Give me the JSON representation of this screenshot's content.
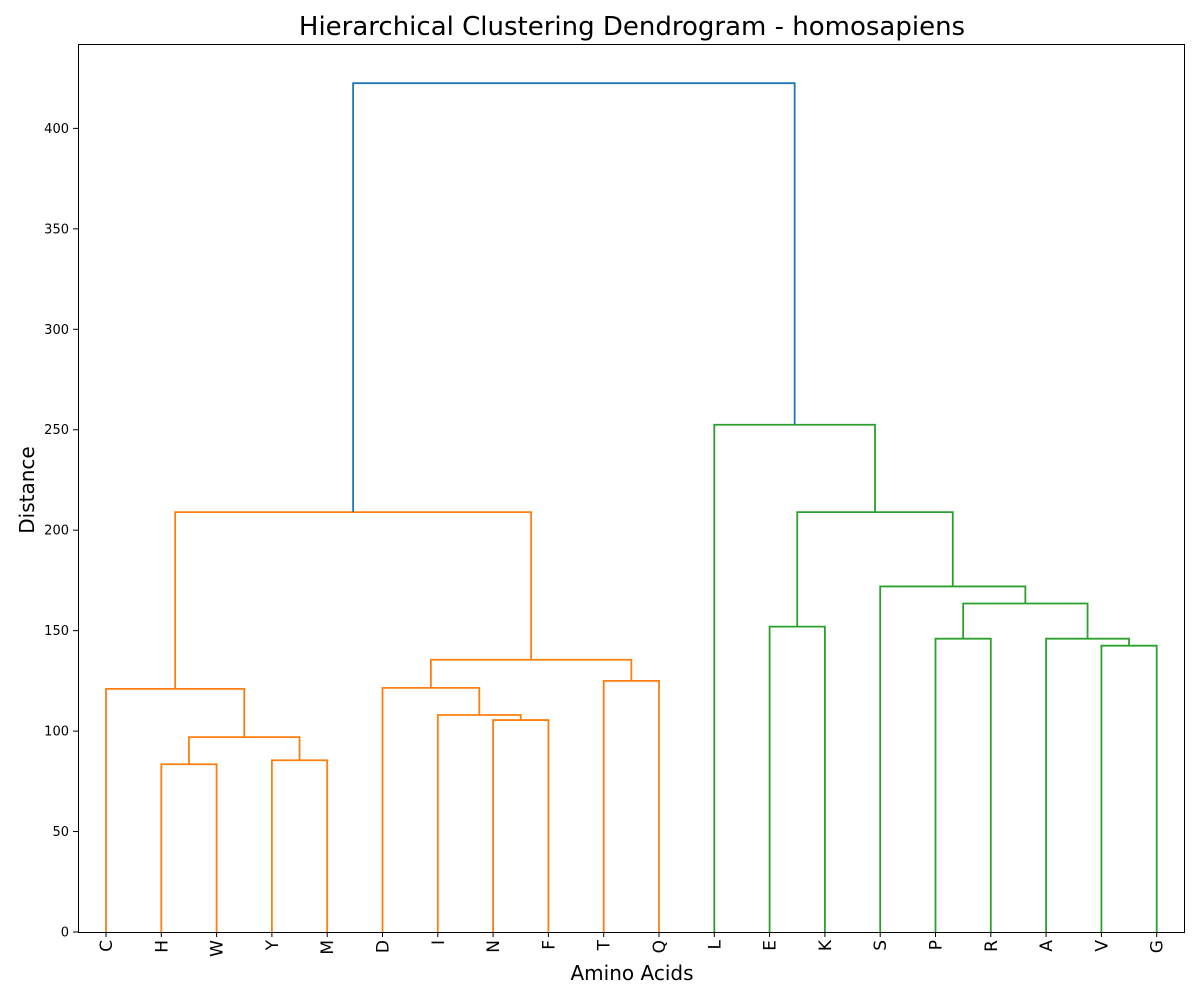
{
  "chart_data": {
    "type": "dendrogram",
    "title": "Hierarchical Clustering Dendrogram - homosapiens",
    "xlabel": "Amino Acids",
    "ylabel": "Distance",
    "ylim": [
      0,
      442
    ],
    "yticks": [
      0,
      50,
      100,
      150,
      200,
      250,
      300,
      350,
      400
    ],
    "leaves": [
      "C",
      "H",
      "W",
      "Y",
      "M",
      "D",
      "I",
      "N",
      "F",
      "T",
      "Q",
      "L",
      "E",
      "K",
      "S",
      "P",
      "R",
      "A",
      "V",
      "G"
    ],
    "merges": [
      {
        "left": "H",
        "right": "W",
        "height": 83.5,
        "color": "#ff7f0e"
      },
      {
        "left": "Y",
        "right": "M",
        "height": 85.5,
        "color": "#ff7f0e"
      },
      {
        "left": "H,W",
        "right": "Y,M",
        "height": 97,
        "color": "#ff7f0e"
      },
      {
        "left": "C",
        "right": "H,W,Y,M",
        "height": 121,
        "color": "#ff7f0e"
      },
      {
        "left": "N",
        "right": "F",
        "height": 105.5,
        "color": "#ff7f0e"
      },
      {
        "left": "I",
        "right": "N,F",
        "height": 108,
        "color": "#ff7f0e"
      },
      {
        "left": "D",
        "right": "I,N,F",
        "height": 121.5,
        "color": "#ff7f0e"
      },
      {
        "left": "T",
        "right": "Q",
        "height": 125,
        "color": "#ff7f0e"
      },
      {
        "left": "D,I,N,F",
        "right": "T,Q",
        "height": 135.5,
        "color": "#ff7f0e"
      },
      {
        "left": "C,H,W,Y,M",
        "right": "D,I,N,F,T,Q",
        "height": 209,
        "color": "#ff7f0e"
      },
      {
        "left": "V",
        "right": "G",
        "height": 142.5,
        "color": "#2ca02c"
      },
      {
        "left": "A",
        "right": "V,G",
        "height": 146,
        "color": "#2ca02c"
      },
      {
        "left": "P",
        "right": "R",
        "height": 146,
        "color": "#2ca02c"
      },
      {
        "left": "P,R",
        "right": "A,V,G",
        "height": 163.5,
        "color": "#2ca02c"
      },
      {
        "left": "S",
        "right": "P,R,A,V,G",
        "height": 172,
        "color": "#2ca02c"
      },
      {
        "left": "E",
        "right": "K",
        "height": 152,
        "color": "#2ca02c"
      },
      {
        "left": "E,K",
        "right": "S,P,R,A,V,G",
        "height": 209,
        "color": "#2ca02c"
      },
      {
        "left": "L",
        "right": "E,K,S,P,R,A,V,G",
        "height": 252.5,
        "color": "#2ca02c"
      },
      {
        "left": "C,H,W,Y,M,D,I,N,F,T,Q",
        "right": "L,E,K,S,P,R,A,V,G",
        "height": 422.5,
        "color": "#1f77b4"
      }
    ],
    "grid": false,
    "legend": "none"
  }
}
